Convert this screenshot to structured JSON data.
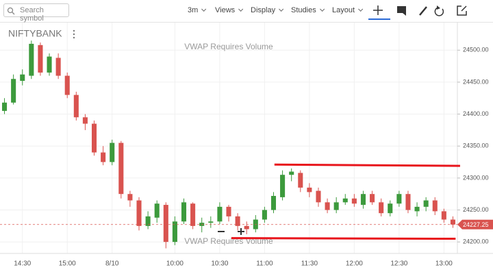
{
  "toolbar": {
    "search_placeholder": "Search symbol",
    "buttons": [
      "3m",
      "Views",
      "Display",
      "Studies",
      "Layout"
    ]
  },
  "chart_data": {
    "type": "candlestick",
    "symbol": "NIFTYBANK",
    "annotations": [
      "VWAP Requires Volume",
      "VWAP Requires Volume"
    ],
    "categories": [
      null,
      null,
      "14:30",
      null,
      null,
      null,
      null,
      "15:00",
      null,
      null,
      null,
      null,
      "8/10",
      null,
      null,
      null,
      null,
      null,
      null,
      "10:00",
      null,
      null,
      null,
      null,
      "10:30",
      null,
      null,
      null,
      null,
      "11:00",
      null,
      null,
      null,
      null,
      "11:30",
      null,
      null,
      null,
      null,
      "12:00",
      null,
      null,
      null,
      null,
      "12:30",
      null,
      null,
      null,
      null,
      "13:00",
      null
    ],
    "open": [
      24405,
      24418,
      24452,
      24460,
      24508,
      24465,
      24488,
      24460,
      24430,
      24395,
      24385,
      24340,
      24325,
      24355,
      24275,
      24265,
      24225,
      24238,
      24258,
      24200,
      24232,
      24260,
      24225,
      24230,
      24232,
      24255,
      24240,
      24225,
      24220,
      24235,
      24250,
      24270,
      24305,
      24308,
      24285,
      24280,
      24262,
      24250,
      24262,
      24268,
      24258,
      24275,
      24262,
      24245,
      24260,
      24275,
      24248,
      24255,
      24265,
      24248,
      24235
    ],
    "high": [
      24425,
      24462,
      24470,
      24515,
      24512,
      24495,
      24495,
      24465,
      24435,
      24400,
      24390,
      24350,
      24360,
      24358,
      24280,
      24270,
      24248,
      24265,
      24262,
      24240,
      24268,
      24262,
      24238,
      24240,
      24262,
      24258,
      24245,
      24232,
      24242,
      24255,
      24278,
      24312,
      24315,
      24312,
      24292,
      24285,
      24268,
      24270,
      24275,
      24275,
      24280,
      24280,
      24268,
      24265,
      24280,
      24280,
      24262,
      24270,
      24270,
      24252,
      24240
    ],
    "low": [
      24400,
      24415,
      24445,
      24455,
      24460,
      24460,
      24455,
      24425,
      24390,
      24375,
      24335,
      24320,
      24320,
      24268,
      24255,
      24218,
      24220,
      24230,
      24190,
      24195,
      24228,
      24220,
      24215,
      24222,
      24228,
      24232,
      24218,
      24212,
      24215,
      24230,
      24245,
      24265,
      24295,
      24278,
      24270,
      24255,
      24245,
      24245,
      24258,
      24255,
      24252,
      24258,
      24240,
      24240,
      24255,
      24245,
      24240,
      24248,
      24242,
      24230,
      24222
    ],
    "close": [
      24418,
      24455,
      24462,
      24510,
      24465,
      24490,
      24460,
      24430,
      24395,
      24385,
      24340,
      24325,
      24355,
      24275,
      24265,
      24225,
      24240,
      24260,
      24200,
      24232,
      24262,
      24225,
      24230,
      24232,
      24255,
      24240,
      24225,
      24220,
      24235,
      24250,
      24272,
      24305,
      24310,
      24285,
      24278,
      24262,
      24250,
      24262,
      24268,
      24260,
      24275,
      24262,
      24245,
      24260,
      24275,
      24250,
      24255,
      24265,
      24248,
      24235,
      24227.25
    ],
    "up_color": "#3c9a3c",
    "down_color": "#d9534f",
    "trendlines": [
      {
        "x": [
          30.1,
          50.8
        ],
        "values": [
          24321,
          24319
        ],
        "color": "#e8141b"
      },
      {
        "x": [
          25.3,
          50.3
        ],
        "values": [
          24206,
          24205
        ],
        "color": "#e8141b"
      }
    ],
    "last_price": {
      "value": 24227.25,
      "label": "24227.25"
    },
    "ylim": [
      24182,
      24541
    ],
    "yticks": [
      {
        "value": 24200,
        "label": "24200.00"
      },
      {
        "value": 24250,
        "label": "24250.00"
      },
      {
        "value": 24300,
        "label": "24300.00"
      },
      {
        "value": 24350,
        "label": "24350.00"
      },
      {
        "value": 24400,
        "label": "24400.00"
      },
      {
        "value": 24450,
        "label": "24450.00"
      },
      {
        "value": 24500,
        "label": "24500.00"
      }
    ],
    "grid": true
  }
}
